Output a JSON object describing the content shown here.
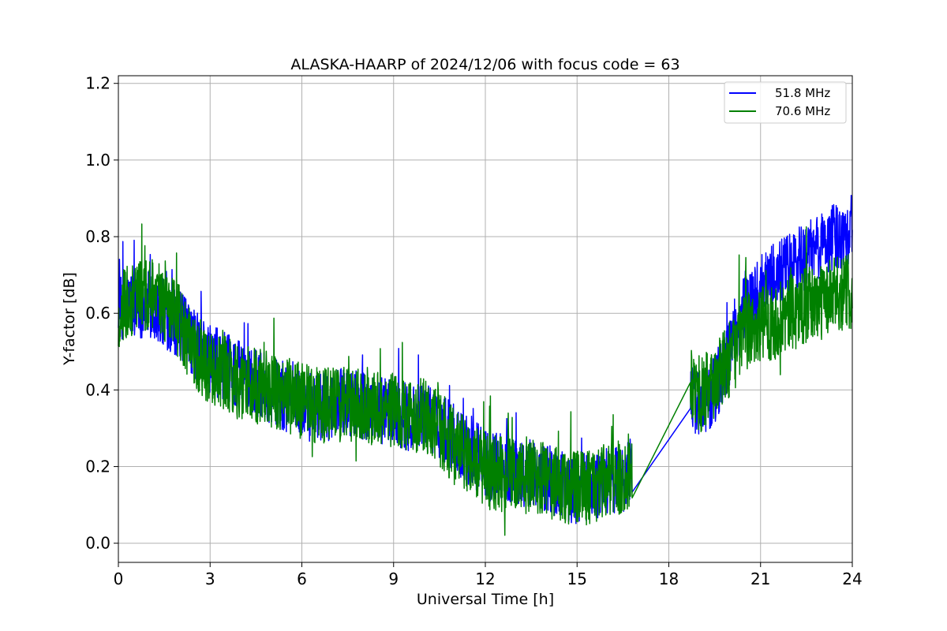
{
  "chart_data": {
    "type": "line",
    "title": "ALASKA-HAARP of 2024/12/06 with focus code = 63",
    "xlabel": "Universal Time [h]",
    "ylabel": "Y-factor [dB]",
    "xlim": [
      0,
      24
    ],
    "ylim": [
      -0.05,
      1.22
    ],
    "xticks": [
      0,
      3,
      6,
      9,
      12,
      15,
      18,
      21,
      24
    ],
    "yticks": [
      0.0,
      0.2,
      0.4,
      0.6,
      0.8,
      1.0,
      1.2
    ],
    "xtick_labels": [
      "0",
      "3",
      "6",
      "9",
      "12",
      "15",
      "18",
      "21",
      "24"
    ],
    "ytick_labels": [
      "0.0",
      "0.2",
      "0.4",
      "0.6",
      "0.8",
      "1.0",
      "1.2"
    ],
    "grid": true,
    "legend_position": "top-right",
    "gap": [
      16.8,
      18.7
    ],
    "series": [
      {
        "name": "51.8 MHz",
        "color": "#0000ff",
        "x": [
          0,
          0.5,
          1,
          1.5,
          2,
          2.5,
          3,
          3.5,
          4,
          4.5,
          5,
          5.5,
          6,
          6.5,
          7,
          7.5,
          8,
          8.5,
          9,
          9.5,
          10,
          10.5,
          11,
          11.5,
          12,
          12.5,
          13,
          13.5,
          14,
          14.5,
          15,
          15.5,
          16,
          16.5,
          16.8,
          18.7,
          19,
          19.5,
          20,
          20.5,
          21,
          21.5,
          22,
          22.5,
          23,
          23.5,
          24
        ],
        "values": [
          0.6,
          0.63,
          0.62,
          0.6,
          0.57,
          0.52,
          0.48,
          0.46,
          0.44,
          0.42,
          0.4,
          0.38,
          0.36,
          0.35,
          0.36,
          0.37,
          0.36,
          0.35,
          0.34,
          0.33,
          0.33,
          0.31,
          0.27,
          0.24,
          0.21,
          0.2,
          0.19,
          0.18,
          0.17,
          0.15,
          0.14,
          0.15,
          0.16,
          0.17,
          0.2,
          0.41,
          0.35,
          0.4,
          0.5,
          0.62,
          0.66,
          0.7,
          0.72,
          0.75,
          0.78,
          0.8,
          0.82
        ],
        "noise": 0.09
      },
      {
        "name": "70.6 MHz",
        "color": "#008000",
        "x": [
          0,
          0.5,
          1,
          1.5,
          2,
          2.5,
          3,
          3.5,
          4,
          4.5,
          5,
          5.5,
          6,
          6.5,
          7,
          7.5,
          8,
          8.5,
          9,
          9.5,
          10,
          10.5,
          11,
          11.5,
          12,
          12.5,
          13,
          13.5,
          14,
          14.5,
          15,
          15.5,
          16,
          16.5,
          16.8,
          18.7,
          19,
          19.5,
          20,
          20.5,
          21,
          21.5,
          22,
          22.5,
          23,
          23.5,
          24
        ],
        "values": [
          0.6,
          0.64,
          0.65,
          0.62,
          0.58,
          0.5,
          0.46,
          0.44,
          0.42,
          0.41,
          0.4,
          0.39,
          0.37,
          0.36,
          0.36,
          0.36,
          0.36,
          0.35,
          0.35,
          0.34,
          0.33,
          0.3,
          0.25,
          0.22,
          0.19,
          0.18,
          0.17,
          0.17,
          0.16,
          0.15,
          0.14,
          0.15,
          0.16,
          0.17,
          0.2,
          0.44,
          0.38,
          0.42,
          0.48,
          0.55,
          0.57,
          0.58,
          0.6,
          0.62,
          0.63,
          0.65,
          0.66
        ],
        "noise": 0.1
      }
    ]
  }
}
